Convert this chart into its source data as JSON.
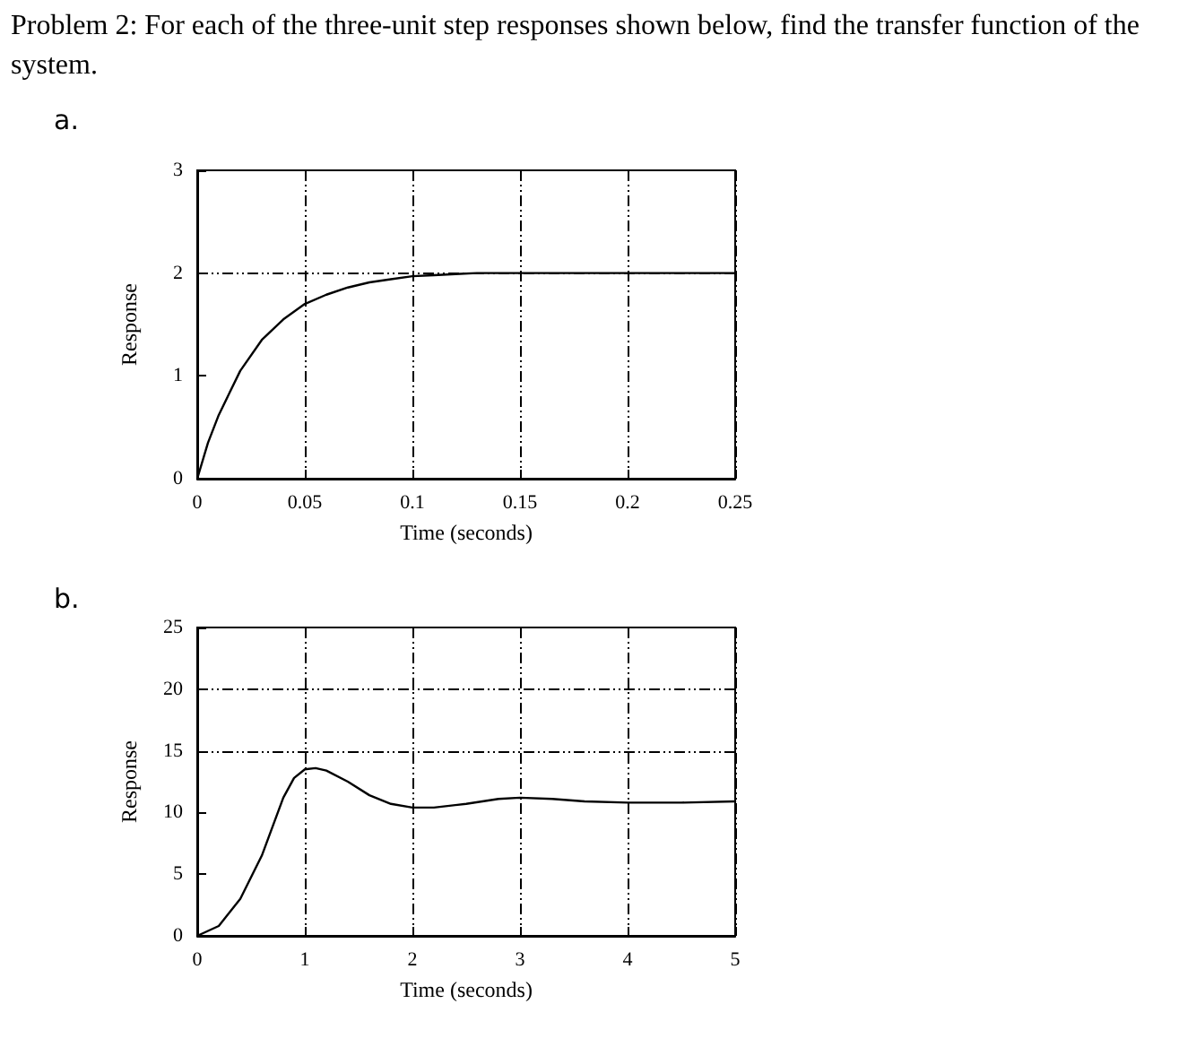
{
  "chart_data": [
    {
      "type": "line",
      "title": "Problem 2: For each of the three-unit step responses shown below, find the transfer function of the system.",
      "subtitle": "a.",
      "xlabel": "Time (seconds)",
      "ylabel": "Response",
      "xlim": [
        0,
        0.25
      ],
      "xticks": [
        0,
        0.05,
        0.1,
        0.15,
        0.2,
        0.25
      ],
      "ylim": [
        0,
        3
      ],
      "yticks": [
        0,
        1,
        2,
        3
      ],
      "grid": "x",
      "ref_lines": [
        {
          "axis": "y",
          "value": 2
        }
      ],
      "marker": "none",
      "line_style": "solid",
      "series": [
        {
          "color": "#000000",
          "x": [
            0,
            0.005,
            0.01,
            0.02,
            0.03,
            0.04,
            0.05,
            0.06,
            0.07,
            0.08,
            0.09,
            0.1,
            0.11,
            0.12,
            0.13,
            0.25
          ],
          "values": [
            0,
            0.35,
            0.62,
            1.05,
            1.35,
            1.55,
            1.7,
            1.79,
            1.86,
            1.91,
            1.94,
            1.97,
            1.98,
            1.99,
            2,
            2
          ]
        }
      ]
    },
    {
      "type": "line",
      "subtitle": "b.",
      "xlabel": "Time (seconds)",
      "ylabel": "Response",
      "xlim": [
        0,
        5
      ],
      "xticks": [
        0,
        1,
        2,
        3,
        4,
        5
      ],
      "ylim": [
        0,
        25
      ],
      "yticks": [
        0,
        5,
        10,
        15,
        20,
        25
      ],
      "grid": "x",
      "ref_lines": [
        {
          "axis": "y",
          "value": 15
        },
        {
          "axis": "y",
          "value": 20
        }
      ],
      "marker": "none",
      "line_style": "solid",
      "series": [
        {
          "color": "#000000",
          "x": [
            0,
            0.2,
            0.4,
            0.6,
            0.8,
            0.9,
            1.0,
            1.1,
            1.2,
            1.4,
            1.6,
            1.8,
            2.0,
            2.2,
            2.5,
            2.8,
            3.0,
            3.3,
            3.6,
            4.0,
            4.5,
            5.0
          ],
          "values": [
            0,
            0.8,
            3,
            6.5,
            11.2,
            12.8,
            13.5,
            13.6,
            13.4,
            12.5,
            11.4,
            10.7,
            10.4,
            10.4,
            10.7,
            11.1,
            11.2,
            11.1,
            10.9,
            10.8,
            10.8,
            10.9
          ]
        }
      ]
    }
  ]
}
